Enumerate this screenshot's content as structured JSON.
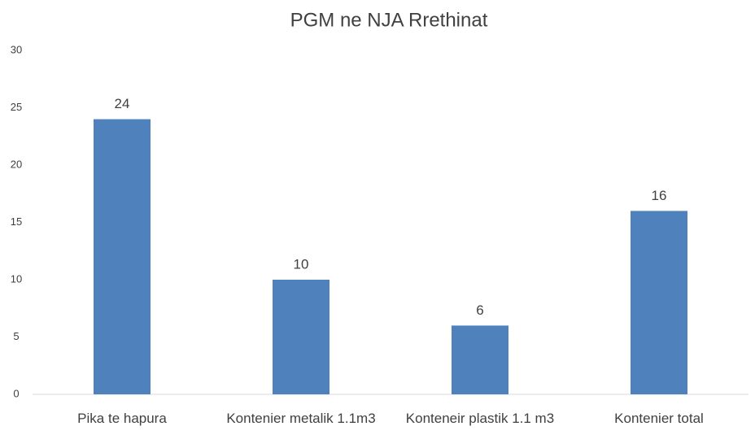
{
  "chart_data": {
    "type": "bar",
    "title": "PGM ne NJA Rrethinat",
    "categories": [
      "Pika te hapura",
      "Kontenier metalik 1.1m3",
      "Konteneir plastik 1.1 m3",
      "Kontenier total"
    ],
    "values": [
      24,
      10,
      6,
      16
    ],
    "color": "#4f81bd",
    "ylim": [
      0,
      30
    ],
    "yticks": [
      0,
      5,
      10,
      15,
      20,
      25,
      30
    ],
    "grid": false
  }
}
